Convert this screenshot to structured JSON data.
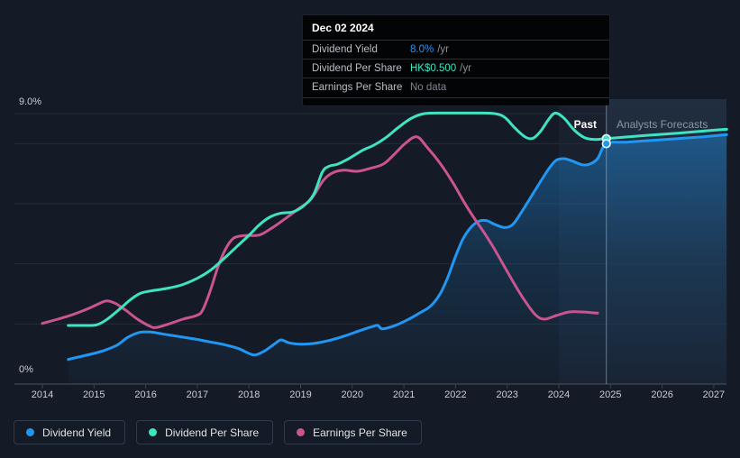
{
  "tooltip": {
    "date": "Dec 02 2024",
    "rows": [
      {
        "label": "Dividend Yield",
        "value": "8.0%",
        "suffix": "/yr",
        "value_color": "#2196F3"
      },
      {
        "label": "Dividend Per Share",
        "value": "HK$0.500",
        "suffix": "/yr",
        "value_color": "#3FE3C2"
      },
      {
        "label": "Earnings Per Share",
        "value": "No data",
        "suffix": "",
        "value_color": "#7E8590"
      }
    ]
  },
  "labels": {
    "past": "Past",
    "analysts_forecasts": "Analysts Forecasts",
    "y_max": "9.0%",
    "y_min": "0%"
  },
  "legend": [
    {
      "label": "Dividend Yield",
      "color": "#2196F3"
    },
    {
      "label": "Dividend Per Share",
      "color": "#3FE3C2"
    },
    {
      "label": "Earnings Per Share",
      "color": "#C9548F"
    }
  ],
  "colors": {
    "background": "#151B26",
    "gridline": "#232C38",
    "axis_line": "#49535F",
    "tick": "#39434F",
    "divider": "rgba(180,205,228,0.5)",
    "forecast_region_tint": "rgba(90,145,200,0.12)",
    "hover_band_tint": "rgba(120,165,210,0.05)",
    "area_fill_base": "#1F8FE8"
  },
  "chart_data": {
    "type": "line",
    "title": "Dividend history and forecast",
    "x_ticks": [
      "2014",
      "2015",
      "2016",
      "2017",
      "2018",
      "2019",
      "2020",
      "2021",
      "2022",
      "2023",
      "2024",
      "2025",
      "2026",
      "2027"
    ],
    "x_range": [
      2014,
      2027.25
    ],
    "ylim": [
      0,
      9
    ],
    "y_unit": "%",
    "gridline_values": [
      0,
      2,
      4,
      6,
      8,
      9
    ],
    "legend_position": "bottom",
    "divider_x": 2024.92,
    "hover_band_start": 2024.0,
    "series": [
      {
        "name": "Dividend Yield",
        "color": "#2196F3",
        "has_area": true,
        "points": [
          [
            2014.5,
            0.82
          ],
          [
            2014.7,
            0.9
          ],
          [
            2015.0,
            1.02
          ],
          [
            2015.2,
            1.12
          ],
          [
            2015.45,
            1.3
          ],
          [
            2015.65,
            1.55
          ],
          [
            2015.88,
            1.72
          ],
          [
            2016.1,
            1.73
          ],
          [
            2016.35,
            1.66
          ],
          [
            2016.65,
            1.58
          ],
          [
            2016.95,
            1.5
          ],
          [
            2017.25,
            1.4
          ],
          [
            2017.55,
            1.3
          ],
          [
            2017.8,
            1.18
          ],
          [
            2018.0,
            1.02
          ],
          [
            2018.12,
            0.97
          ],
          [
            2018.3,
            1.1
          ],
          [
            2018.5,
            1.34
          ],
          [
            2018.62,
            1.47
          ],
          [
            2018.78,
            1.37
          ],
          [
            2019.0,
            1.33
          ],
          [
            2019.25,
            1.35
          ],
          [
            2019.55,
            1.45
          ],
          [
            2019.85,
            1.6
          ],
          [
            2020.15,
            1.78
          ],
          [
            2020.42,
            1.93
          ],
          [
            2020.5,
            1.95
          ],
          [
            2020.58,
            1.84
          ],
          [
            2020.8,
            1.93
          ],
          [
            2021.05,
            2.12
          ],
          [
            2021.3,
            2.36
          ],
          [
            2021.52,
            2.6
          ],
          [
            2021.7,
            3.0
          ],
          [
            2021.85,
            3.55
          ],
          [
            2022.0,
            4.25
          ],
          [
            2022.15,
            4.85
          ],
          [
            2022.3,
            5.22
          ],
          [
            2022.45,
            5.42
          ],
          [
            2022.6,
            5.44
          ],
          [
            2022.75,
            5.32
          ],
          [
            2022.95,
            5.21
          ],
          [
            2023.1,
            5.3
          ],
          [
            2023.25,
            5.65
          ],
          [
            2023.45,
            6.2
          ],
          [
            2023.65,
            6.75
          ],
          [
            2023.82,
            7.2
          ],
          [
            2023.95,
            7.45
          ],
          [
            2024.1,
            7.5
          ],
          [
            2024.25,
            7.43
          ],
          [
            2024.45,
            7.3
          ],
          [
            2024.6,
            7.32
          ],
          [
            2024.75,
            7.5
          ],
          [
            2024.92,
            8.0
          ]
        ],
        "forecast_points": [
          [
            2024.92,
            8.0
          ],
          [
            2025.3,
            8.05
          ],
          [
            2025.8,
            8.11
          ],
          [
            2026.3,
            8.17
          ],
          [
            2026.8,
            8.23
          ],
          [
            2027.25,
            8.3
          ]
        ]
      },
      {
        "name": "Earnings Per Share",
        "color": "#C9548F",
        "has_area": false,
        "points": [
          [
            2014.0,
            2.02
          ],
          [
            2014.3,
            2.16
          ],
          [
            2014.6,
            2.32
          ],
          [
            2014.9,
            2.52
          ],
          [
            2015.1,
            2.68
          ],
          [
            2015.25,
            2.77
          ],
          [
            2015.42,
            2.68
          ],
          [
            2015.62,
            2.45
          ],
          [
            2015.85,
            2.15
          ],
          [
            2016.08,
            1.93
          ],
          [
            2016.2,
            1.88
          ],
          [
            2016.45,
            2.0
          ],
          [
            2016.72,
            2.16
          ],
          [
            2016.98,
            2.28
          ],
          [
            2017.1,
            2.45
          ],
          [
            2017.25,
            3.1
          ],
          [
            2017.4,
            3.9
          ],
          [
            2017.55,
            4.5
          ],
          [
            2017.7,
            4.85
          ],
          [
            2017.9,
            4.94
          ],
          [
            2018.2,
            4.96
          ],
          [
            2018.45,
            5.2
          ],
          [
            2018.7,
            5.5
          ],
          [
            2018.95,
            5.82
          ],
          [
            2019.2,
            6.15
          ],
          [
            2019.45,
            6.8
          ],
          [
            2019.65,
            7.05
          ],
          [
            2019.85,
            7.12
          ],
          [
            2020.1,
            7.08
          ],
          [
            2020.35,
            7.18
          ],
          [
            2020.6,
            7.32
          ],
          [
            2020.8,
            7.62
          ],
          [
            2021.02,
            8.0
          ],
          [
            2021.25,
            8.23
          ],
          [
            2021.45,
            7.88
          ],
          [
            2021.7,
            7.35
          ],
          [
            2021.95,
            6.7
          ],
          [
            2022.15,
            6.1
          ],
          [
            2022.35,
            5.55
          ],
          [
            2022.55,
            5.05
          ],
          [
            2022.75,
            4.5
          ],
          [
            2022.95,
            3.9
          ],
          [
            2023.15,
            3.3
          ],
          [
            2023.35,
            2.75
          ],
          [
            2023.55,
            2.3
          ],
          [
            2023.72,
            2.16
          ],
          [
            2023.95,
            2.28
          ],
          [
            2024.2,
            2.4
          ],
          [
            2024.45,
            2.4
          ],
          [
            2024.75,
            2.36
          ]
        ]
      },
      {
        "name": "Dividend Per Share",
        "color": "#3FE3C2",
        "has_area": false,
        "points": [
          [
            2014.5,
            1.95
          ],
          [
            2014.8,
            1.95
          ],
          [
            2015.05,
            1.97
          ],
          [
            2015.25,
            2.15
          ],
          [
            2015.5,
            2.5
          ],
          [
            2015.7,
            2.8
          ],
          [
            2015.9,
            3.02
          ],
          [
            2016.1,
            3.1
          ],
          [
            2016.4,
            3.18
          ],
          [
            2016.7,
            3.3
          ],
          [
            2017.0,
            3.52
          ],
          [
            2017.25,
            3.78
          ],
          [
            2017.5,
            4.15
          ],
          [
            2017.75,
            4.55
          ],
          [
            2018.0,
            4.95
          ],
          [
            2018.2,
            5.3
          ],
          [
            2018.4,
            5.55
          ],
          [
            2018.6,
            5.68
          ],
          [
            2018.85,
            5.73
          ],
          [
            2019.05,
            5.92
          ],
          [
            2019.25,
            6.3
          ],
          [
            2019.42,
            7.05
          ],
          [
            2019.55,
            7.25
          ],
          [
            2019.72,
            7.32
          ],
          [
            2019.95,
            7.52
          ],
          [
            2020.2,
            7.78
          ],
          [
            2020.42,
            7.95
          ],
          [
            2020.65,
            8.2
          ],
          [
            2020.9,
            8.55
          ],
          [
            2021.15,
            8.85
          ],
          [
            2021.4,
            9.0
          ],
          [
            2021.8,
            9.02
          ],
          [
            2022.4,
            9.02
          ],
          [
            2022.75,
            9.0
          ],
          [
            2022.95,
            8.88
          ],
          [
            2023.15,
            8.52
          ],
          [
            2023.35,
            8.22
          ],
          [
            2023.5,
            8.18
          ],
          [
            2023.65,
            8.42
          ],
          [
            2023.8,
            8.8
          ],
          [
            2023.93,
            9.02
          ],
          [
            2024.1,
            8.85
          ],
          [
            2024.3,
            8.45
          ],
          [
            2024.5,
            8.2
          ],
          [
            2024.7,
            8.14
          ],
          [
            2024.92,
            8.17
          ]
        ],
        "forecast_points": [
          [
            2024.92,
            8.17
          ],
          [
            2025.3,
            8.22
          ],
          [
            2025.8,
            8.29
          ],
          [
            2026.3,
            8.35
          ],
          [
            2026.8,
            8.42
          ],
          [
            2027.25,
            8.48
          ]
        ]
      }
    ],
    "markers": [
      {
        "x": 2024.92,
        "y": 8.17,
        "color": "#3FE3C2"
      },
      {
        "x": 2024.92,
        "y": 8.0,
        "color": "#2196F3"
      }
    ]
  }
}
